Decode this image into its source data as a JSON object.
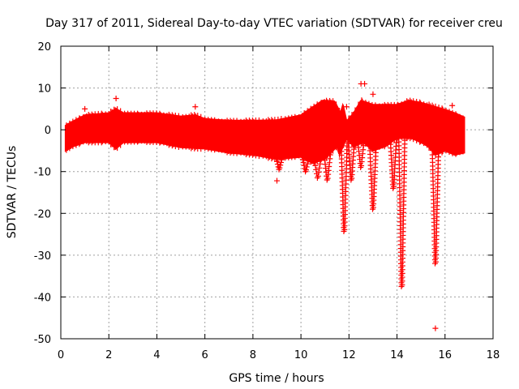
{
  "chart_data": {
    "type": "scatter",
    "title": "Day 317 of 2011, Sidereal Day-to-day VTEC variation (SDTVAR) for receiver creu",
    "xlabel": "GPS time / hours",
    "ylabel": "SDTVAR / TECUs",
    "xlim": [
      0,
      18
    ],
    "ylim": [
      -50,
      20
    ],
    "xticks": [
      0,
      2,
      4,
      6,
      8,
      10,
      12,
      14,
      16,
      18
    ],
    "yticks": [
      -50,
      -40,
      -30,
      -20,
      -10,
      0,
      10,
      20
    ],
    "grid": true,
    "marker": "+",
    "color": "#ff0000",
    "series": [
      {
        "name": "SDTVAR",
        "band_upper": [
          [
            0.2,
            1
          ],
          [
            0.5,
            2
          ],
          [
            1.0,
            3.5
          ],
          [
            2.0,
            4
          ],
          [
            2.3,
            5
          ],
          [
            2.6,
            4
          ],
          [
            4.0,
            4
          ],
          [
            5.0,
            3.2
          ],
          [
            5.6,
            3.5
          ],
          [
            6.0,
            2.6
          ],
          [
            7.0,
            2.2
          ],
          [
            8.0,
            2.2
          ],
          [
            9.0,
            2.3
          ],
          [
            10.0,
            3.5
          ],
          [
            10.9,
            7
          ],
          [
            11.4,
            6.8
          ],
          [
            11.65,
            4
          ],
          [
            11.75,
            6
          ],
          [
            11.9,
            2
          ],
          [
            12.2,
            4
          ],
          [
            12.5,
            7
          ],
          [
            13.0,
            6
          ],
          [
            14.0,
            6
          ],
          [
            14.5,
            7
          ],
          [
            15.0,
            6.5
          ],
          [
            16.0,
            4.8
          ],
          [
            16.4,
            4
          ],
          [
            16.8,
            3
          ]
        ],
        "band_lower": [
          [
            0.2,
            -5
          ],
          [
            0.5,
            -4
          ],
          [
            1.0,
            -3
          ],
          [
            2.0,
            -3
          ],
          [
            2.3,
            -4.5
          ],
          [
            2.6,
            -3
          ],
          [
            4.0,
            -3
          ],
          [
            5.0,
            -4.2
          ],
          [
            6.0,
            -4.5
          ],
          [
            7.0,
            -5.5
          ],
          [
            8.0,
            -6
          ],
          [
            9.0,
            -7
          ],
          [
            10.0,
            -6.5
          ],
          [
            10.5,
            -8
          ],
          [
            11.0,
            -7
          ],
          [
            11.5,
            -4
          ],
          [
            11.6,
            -6
          ],
          [
            11.9,
            -2
          ],
          [
            12.2,
            -4
          ],
          [
            12.6,
            -3
          ],
          [
            13.0,
            -5
          ],
          [
            13.5,
            -4
          ],
          [
            14.0,
            -2
          ],
          [
            14.6,
            -2
          ],
          [
            15.0,
            -3
          ],
          [
            15.3,
            -4
          ],
          [
            15.6,
            -6
          ],
          [
            16.0,
            -5
          ],
          [
            16.4,
            -6
          ],
          [
            16.8,
            -5.5
          ]
        ],
        "dips": [
          {
            "x": 11.8,
            "y": -24.3
          },
          {
            "x": 12.1,
            "y": -12
          },
          {
            "x": 12.5,
            "y": -9
          },
          {
            "x": 13.0,
            "y": -19
          },
          {
            "x": 13.85,
            "y": -14
          },
          {
            "x": 14.2,
            "y": -37.5
          },
          {
            "x": 15.6,
            "y": -32
          },
          {
            "x": 10.2,
            "y": -10
          },
          {
            "x": 10.7,
            "y": -11.5
          },
          {
            "x": 11.1,
            "y": -12
          },
          {
            "x": 9.1,
            "y": -9.5
          }
        ],
        "outliers": [
          {
            "x": 15.6,
            "y": -47.5
          },
          {
            "x": 9.0,
            "y": -12.2
          },
          {
            "x": 12.5,
            "y": 11
          },
          {
            "x": 12.65,
            "y": 11
          },
          {
            "x": 13.0,
            "y": 8.5
          },
          {
            "x": 2.3,
            "y": 7.5
          },
          {
            "x": 1.0,
            "y": 5
          },
          {
            "x": 16.3,
            "y": 5.8
          },
          {
            "x": 5.6,
            "y": 5.5
          },
          {
            "x": 11.9,
            "y": 5.5
          }
        ]
      }
    ]
  }
}
